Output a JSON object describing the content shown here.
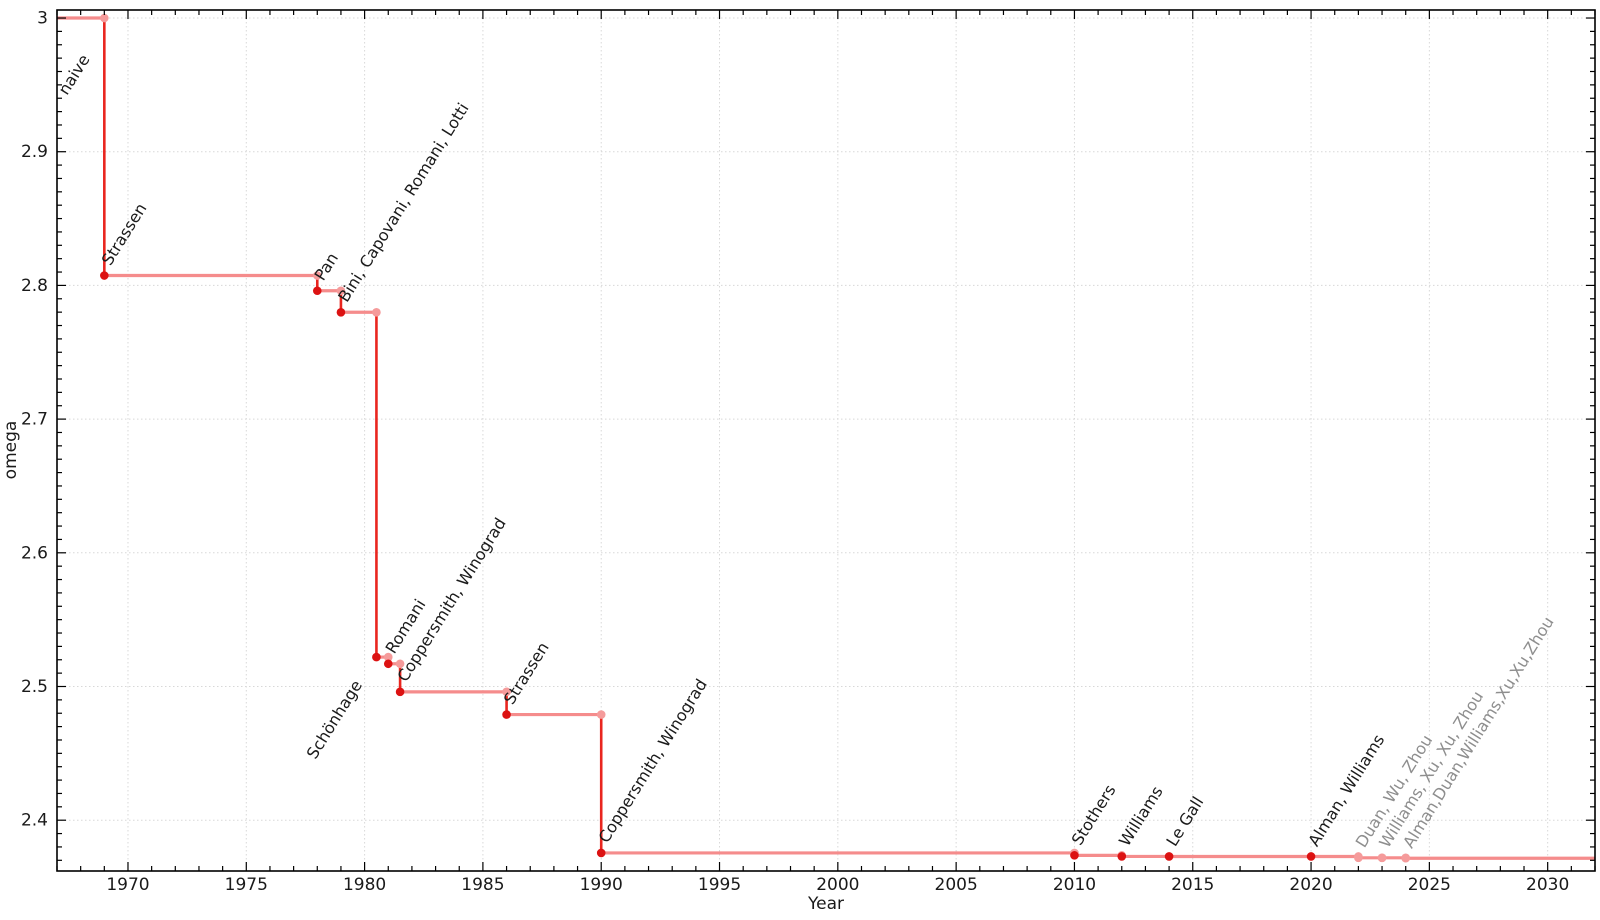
{
  "page": {
    "background": "#ffffff"
  },
  "chart_data": {
    "type": "line",
    "subtype": "step-post",
    "xlabel": "Year",
    "ylabel": "omega",
    "xlim": [
      1967,
      2032
    ],
    "ylim": [
      2.362,
      3.006
    ],
    "grid": true,
    "legend": "none",
    "x_major_ticks": [
      {
        "v": 1970,
        "label": "1970"
      },
      {
        "v": 1975,
        "label": "1975"
      },
      {
        "v": 1980,
        "label": "1980"
      },
      {
        "v": 1985,
        "label": "1985"
      },
      {
        "v": 1990,
        "label": "1990"
      },
      {
        "v": 1995,
        "label": "1995"
      },
      {
        "v": 2000,
        "label": "2000"
      },
      {
        "v": 2005,
        "label": "2005"
      },
      {
        "v": 2010,
        "label": "2010"
      },
      {
        "v": 2015,
        "label": "2015"
      },
      {
        "v": 2020,
        "label": "2020"
      },
      {
        "v": 2025,
        "label": "2025"
      },
      {
        "v": 2030,
        "label": "2030"
      }
    ],
    "x_minor_step": 1,
    "y_major_ticks": [
      {
        "v": 3.0,
        "label": "3"
      },
      {
        "v": 2.9,
        "label": "2.9"
      },
      {
        "v": 2.8,
        "label": "2.8"
      },
      {
        "v": 2.7,
        "label": "2.7"
      },
      {
        "v": 2.6,
        "label": "2.6"
      },
      {
        "v": 2.5,
        "label": "2.5"
      },
      {
        "v": 2.4,
        "label": "2.4"
      }
    ],
    "y_minor_step": 0.01,
    "style": {
      "step_line_color": "#F58C8C",
      "drop_line_color": "#E9261F",
      "point_color": "#DC1212",
      "step_top_point_color": "#F59B9B",
      "faded_point_color": "#F59B9B",
      "label_color": "#1b1b1b",
      "faded_label_color": "#8E8E8E",
      "grid_color": "#D8D8D8",
      "axis_color": "#000000"
    },
    "points": [
      {
        "label": "naive",
        "year": 1967,
        "omega": 3.0,
        "dot": false,
        "emphasis": "normal"
      },
      {
        "label": "Strassen",
        "year": 1969,
        "omega": 2.8074,
        "dot": true,
        "emphasis": "normal"
      },
      {
        "label": "Pan",
        "year": 1978,
        "omega": 2.796,
        "dot": true,
        "emphasis": "normal"
      },
      {
        "label": "Bini, Capovani, Romani, Lotti",
        "year": 1979,
        "omega": 2.7799,
        "dot": true,
        "emphasis": "normal"
      },
      {
        "label": "Schönhage",
        "year": 1980.5,
        "omega": 2.522,
        "dot": true,
        "emphasis": "normal"
      },
      {
        "label": "Romani",
        "year": 1981,
        "omega": 2.517,
        "dot": true,
        "emphasis": "normal"
      },
      {
        "label": "Coppersmith, Winograd",
        "year": 1981.5,
        "omega": 2.496,
        "dot": true,
        "emphasis": "normal"
      },
      {
        "label": "Strassen",
        "year": 1986,
        "omega": 2.479,
        "dot": true,
        "emphasis": "normal"
      },
      {
        "label": "Coppersmith, Winograd",
        "year": 1990,
        "omega": 2.3755,
        "dot": true,
        "emphasis": "normal"
      },
      {
        "label": "Stothers",
        "year": 2010,
        "omega": 2.3737,
        "dot": true,
        "emphasis": "normal"
      },
      {
        "label": "Williams",
        "year": 2012,
        "omega": 2.3729,
        "dot": true,
        "emphasis": "normal"
      },
      {
        "label": "Le Gall",
        "year": 2014,
        "omega": 2.3728639,
        "dot": true,
        "emphasis": "normal"
      },
      {
        "label": "Alman, Williams",
        "year": 2020,
        "omega": 2.3728596,
        "dot": true,
        "emphasis": "normal"
      },
      {
        "label": "Duan, Wu, Zhou",
        "year": 2022,
        "omega": 2.37188,
        "dot": true,
        "emphasis": "faded"
      },
      {
        "label": "Williams, Xu, Xu, Zhou",
        "year": 2023,
        "omega": 2.371866,
        "dot": true,
        "emphasis": "faded"
      },
      {
        "label": "Alman,Duan,Williams,Xu,Xu,Zhou",
        "year": 2024,
        "omega": 2.371552,
        "dot": true,
        "emphasis": "faded"
      }
    ]
  }
}
